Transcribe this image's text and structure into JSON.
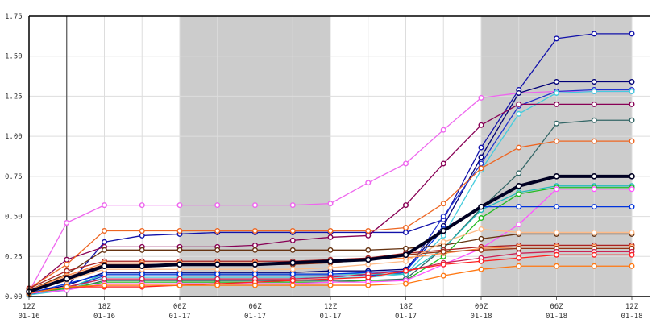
{
  "chart_data": {
    "type": "line",
    "title": "",
    "xlabel": "",
    "ylabel": "",
    "x": [
      "01-16 12Z",
      "01-16 15Z",
      "01-16 18Z",
      "01-16 21Z",
      "01-17 00Z",
      "01-17 03Z",
      "01-17 06Z",
      "01-17 09Z",
      "01-17 12Z",
      "01-17 15Z",
      "01-17 18Z",
      "01-17 21Z",
      "01-18 00Z",
      "01-18 03Z",
      "01-18 06Z",
      "01-18 09Z",
      "01-18 12Z"
    ],
    "x_ticks": [
      {
        "index": 0,
        "hour": "12Z",
        "date": "01-16"
      },
      {
        "index": 2,
        "hour": "18Z",
        "date": "01-16"
      },
      {
        "index": 4,
        "hour": "00Z",
        "date": "01-17"
      },
      {
        "index": 6,
        "hour": "06Z",
        "date": "01-17"
      },
      {
        "index": 8,
        "hour": "12Z",
        "date": "01-17"
      },
      {
        "index": 10,
        "hour": "18Z",
        "date": "01-17"
      },
      {
        "index": 12,
        "hour": "00Z",
        "date": "01-18"
      },
      {
        "index": 14,
        "hour": "06Z",
        "date": "01-18"
      },
      {
        "index": 16,
        "hour": "12Z",
        "date": "01-18"
      }
    ],
    "y_ticks": [
      "0.00",
      "0.25",
      "0.50",
      "0.75",
      "1.00",
      "1.25",
      "1.50",
      "1.75"
    ],
    "ylim": [
      0,
      1.75
    ],
    "grid": true,
    "shaded_periods": [
      [
        "01-17 00Z",
        "01-17 12Z"
      ],
      [
        "01-18 00Z",
        "01-18 12Z"
      ]
    ],
    "current_time": "01-16 15Z",
    "series": [
      {
        "color": "#ee66ee",
        "values": [
          0.03,
          0.46,
          0.57,
          0.57,
          0.57,
          0.57,
          0.57,
          0.57,
          0.58,
          0.71,
          0.83,
          1.04,
          1.24,
          1.27,
          1.28,
          1.28,
          1.28
        ]
      },
      {
        "color": "#1111aa",
        "values": [
          0.01,
          0.06,
          0.34,
          0.38,
          0.39,
          0.4,
          0.4,
          0.4,
          0.4,
          0.4,
          0.4,
          0.48,
          0.93,
          1.29,
          1.61,
          1.64,
          1.64
        ]
      },
      {
        "color": "#000077",
        "values": [
          0.02,
          0.07,
          0.15,
          0.15,
          0.15,
          0.15,
          0.15,
          0.15,
          0.16,
          0.16,
          0.17,
          0.44,
          0.87,
          1.27,
          1.34,
          1.34,
          1.34
        ]
      },
      {
        "color": "#2233cc",
        "values": [
          0.02,
          0.05,
          0.13,
          0.13,
          0.13,
          0.13,
          0.13,
          0.13,
          0.13,
          0.13,
          0.15,
          0.5,
          0.83,
          1.19,
          1.28,
          1.29,
          1.29
        ]
      },
      {
        "color": "#44ccdd",
        "values": [
          0.01,
          0.04,
          0.12,
          0.12,
          0.12,
          0.12,
          0.12,
          0.12,
          0.12,
          0.12,
          0.14,
          0.38,
          0.79,
          1.14,
          1.27,
          1.28,
          1.28
        ]
      },
      {
        "color": "#880055",
        "values": [
          0.04,
          0.23,
          0.31,
          0.31,
          0.31,
          0.31,
          0.32,
          0.35,
          0.37,
          0.38,
          0.57,
          0.83,
          1.07,
          1.2,
          1.2,
          1.2,
          1.2
        ]
      },
      {
        "color": "#336666",
        "values": [
          0.02,
          0.04,
          0.1,
          0.1,
          0.1,
          0.1,
          0.1,
          0.1,
          0.1,
          0.1,
          0.11,
          0.3,
          0.55,
          0.77,
          1.08,
          1.1,
          1.1
        ]
      },
      {
        "color": "#ee6622",
        "values": [
          0.05,
          0.2,
          0.41,
          0.41,
          0.41,
          0.41,
          0.41,
          0.41,
          0.41,
          0.41,
          0.43,
          0.58,
          0.8,
          0.93,
          0.97,
          0.97,
          0.97
        ]
      },
      {
        "color": "#000022",
        "values": [
          0.03,
          0.11,
          0.19,
          0.19,
          0.2,
          0.2,
          0.2,
          0.21,
          0.22,
          0.23,
          0.26,
          0.41,
          0.56,
          0.69,
          0.75,
          0.75,
          0.75
        ]
      },
      {
        "color": "#22bbbb",
        "values": [
          0.02,
          0.05,
          0.14,
          0.14,
          0.14,
          0.14,
          0.14,
          0.14,
          0.14,
          0.14,
          0.14,
          0.3,
          0.54,
          0.65,
          0.69,
          0.69,
          0.69
        ]
      },
      {
        "color": "#22bb22",
        "values": [
          0.02,
          0.05,
          0.09,
          0.09,
          0.09,
          0.09,
          0.09,
          0.09,
          0.09,
          0.1,
          0.1,
          0.25,
          0.49,
          0.64,
          0.68,
          0.68,
          0.68
        ]
      },
      {
        "color": "#ff55ff",
        "values": [
          0.02,
          0.04,
          0.08,
          0.08,
          0.08,
          0.08,
          0.08,
          0.08,
          0.09,
          0.09,
          0.1,
          0.2,
          0.3,
          0.45,
          0.67,
          0.67,
          0.67
        ]
      },
      {
        "color": "#0033dd",
        "values": [
          0.02,
          0.08,
          0.14,
          0.14,
          0.14,
          0.14,
          0.14,
          0.14,
          0.14,
          0.15,
          0.16,
          0.42,
          0.56,
          0.56,
          0.56,
          0.56,
          0.56
        ]
      },
      {
        "color": "#663311",
        "values": [
          0.04,
          0.14,
          0.29,
          0.29,
          0.29,
          0.29,
          0.29,
          0.29,
          0.29,
          0.29,
          0.3,
          0.32,
          0.36,
          0.39,
          0.39,
          0.39,
          0.39
        ]
      },
      {
        "color": "#aa2222",
        "values": [
          0.05,
          0.16,
          0.22,
          0.22,
          0.22,
          0.22,
          0.22,
          0.22,
          0.23,
          0.24,
          0.27,
          0.29,
          0.31,
          0.32,
          0.32,
          0.32,
          0.32
        ]
      },
      {
        "color": "#ff8844",
        "values": [
          0.04,
          0.13,
          0.21,
          0.21,
          0.21,
          0.21,
          0.21,
          0.21,
          0.22,
          0.23,
          0.24,
          0.27,
          0.3,
          0.31,
          0.31,
          0.31,
          0.31
        ]
      },
      {
        "color": "#993311",
        "values": [
          0.03,
          0.12,
          0.2,
          0.2,
          0.2,
          0.2,
          0.2,
          0.2,
          0.21,
          0.23,
          0.26,
          0.28,
          0.29,
          0.3,
          0.3,
          0.3,
          0.3
        ]
      },
      {
        "color": "#cc2255",
        "values": [
          0.02,
          0.06,
          0.11,
          0.11,
          0.11,
          0.11,
          0.11,
          0.11,
          0.12,
          0.14,
          0.16,
          0.21,
          0.24,
          0.27,
          0.28,
          0.28,
          0.28
        ]
      },
      {
        "color": "#ff2222",
        "values": [
          0.02,
          0.06,
          0.06,
          0.06,
          0.07,
          0.08,
          0.09,
          0.1,
          0.11,
          0.12,
          0.16,
          0.2,
          0.22,
          0.24,
          0.26,
          0.26,
          0.26
        ]
      },
      {
        "color": "#ff7711",
        "values": [
          0.02,
          0.06,
          0.07,
          0.07,
          0.07,
          0.07,
          0.07,
          0.07,
          0.07,
          0.07,
          0.08,
          0.13,
          0.17,
          0.19,
          0.19,
          0.19,
          0.19
        ]
      },
      {
        "color": "#ffbb88",
        "values": [
          0.03,
          0.1,
          0.17,
          0.17,
          0.17,
          0.17,
          0.17,
          0.17,
          0.18,
          0.2,
          0.22,
          0.34,
          0.42,
          0.4,
          0.4,
          0.4,
          0.4
        ]
      }
    ],
    "mean_series_index": 8
  }
}
